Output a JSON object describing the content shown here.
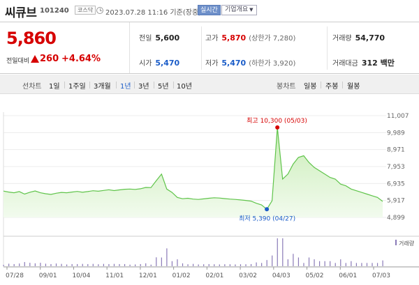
{
  "header": {
    "name": "씨큐브",
    "code": "101240",
    "market": "코스닥",
    "datetime": "2023.07.28 11:16  기준(장중)",
    "realtime": "실시간",
    "overview": "기업개요"
  },
  "quote": {
    "price": "5,860",
    "change_label": "전일대비",
    "change": "260",
    "change_pct": "+4.64%",
    "prev_close": {
      "label": "전일",
      "value": "5,600"
    },
    "high": {
      "label": "고가",
      "value": "5,870",
      "sub": "(상한가 7,280)"
    },
    "volume": {
      "label": "거래량",
      "value": "54,770"
    },
    "open": {
      "label": "시가",
      "value": "5,470"
    },
    "low": {
      "label": "저가",
      "value": "5,470",
      "sub": "(하한가 3,920)"
    },
    "amount": {
      "label": "거래대금",
      "value": "312 백만"
    }
  },
  "tabs": {
    "line_label": "선차트",
    "periods": [
      "1일",
      "1주일",
      "3개월",
      "1년",
      "3년",
      "5년",
      "10년"
    ],
    "active_period": "1년",
    "candle_label": "봉차트",
    "candles": [
      "일봉",
      "주봉",
      "월봉"
    ]
  },
  "chart_data": {
    "type": "area",
    "y_ticks": [
      "11,007",
      "9,989",
      "8,971",
      "7,953",
      "6,935",
      "5,917",
      "4,899"
    ],
    "ylim": [
      4899,
      11007
    ],
    "x_ticks": [
      "07/28",
      "09/01",
      "10/04",
      "11/01",
      "12/01",
      "01/02",
      "02/01",
      "03/02",
      "04/03",
      "05/02",
      "06/01",
      "07/03"
    ],
    "max_annotation": "최고 10,300 (05/03)",
    "min_annotation": "최저 5,390 (04/27)",
    "volume_legend": "거래량",
    "series": [
      {
        "values": [
          6480,
          6420,
          6380,
          6450,
          6300,
          6410,
          6490,
          6380,
          6320,
          6280,
          6350,
          6400,
          6380,
          6420,
          6460,
          6410,
          6450,
          6500,
          6470,
          6520,
          6560,
          6510,
          6550,
          6590,
          6600,
          6580,
          6620,
          6700,
          6690,
          7100,
          7500,
          6600,
          6400,
          6100,
          6020,
          6050,
          6000,
          5980,
          6010,
          6050,
          6080,
          6060,
          6030,
          6000,
          5980,
          5950,
          5920,
          5880,
          5750,
          5650,
          5390,
          5900,
          10300,
          7200,
          7500,
          8100,
          8500,
          8600,
          8200,
          7900,
          7700,
          7500,
          7300,
          7200,
          6900,
          6800,
          6600,
          6500,
          6400,
          6300,
          6200,
          6100,
          5860
        ]
      }
    ]
  },
  "colors": {
    "line": "#5fc44a",
    "fill_top": "#c8ecb5",
    "fill_bottom": "#f2fbee",
    "red": "#d60000",
    "blue": "#1a5cc8",
    "volume": "#8a7ab8"
  }
}
